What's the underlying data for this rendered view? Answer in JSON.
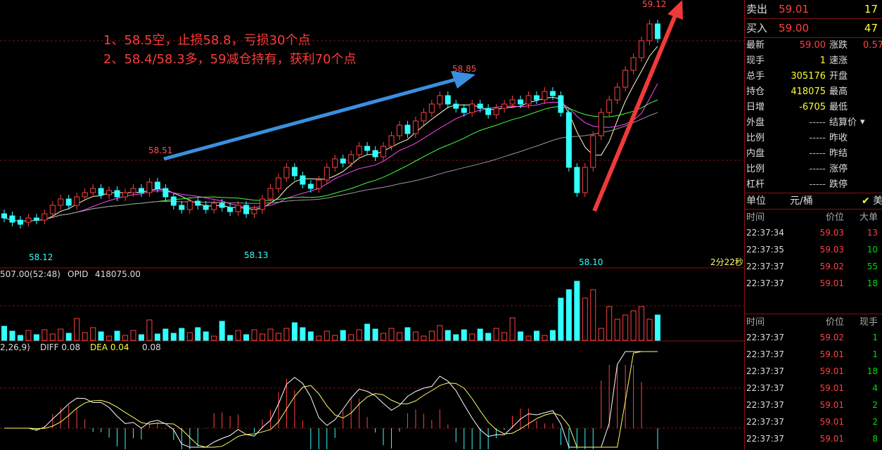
{
  "annotations": {
    "line1": "1、58.5空，止损58.8，亏损30个点",
    "line2": "2、58.4/58.3多，59减仓持有，获利70个点"
  },
  "price_labels": {
    "high_left": "58.51",
    "low_left": "58.12",
    "low_mid": "58.13",
    "high_mid": "58.85",
    "low_right": "58.10",
    "high_right": "59.12"
  },
  "timer": "2分22秒",
  "volume_header": {
    "vol": "507.00(52:48)",
    "opid_label": "OPID",
    "opid_value": "418075.00"
  },
  "macd_header": {
    "params": "2,26,9)",
    "diff": "DIFF 0.08",
    "dea": "DEA 0.04",
    "macd": "0.08"
  },
  "quote": {
    "sell_label": "卖出",
    "sell_price": "59.01",
    "sell_vol": "17",
    "buy_label": "买入",
    "buy_price": "59.00",
    "buy_vol": "47"
  },
  "stats": [
    {
      "l1": "最新",
      "v1": "59.00",
      "c1": "red",
      "l2": "涨跌",
      "v2": "0.57",
      "c2": "red"
    },
    {
      "l1": "现手",
      "v1": "1",
      "c1": "yellow",
      "l2": "速涨",
      "v2": "",
      "c2": "gray"
    },
    {
      "l1": "总手",
      "v1": "305176",
      "c1": "yellow",
      "l2": "开盘",
      "v2": "",
      "c2": "gray"
    },
    {
      "l1": "持仓",
      "v1": "418075",
      "c1": "yellow",
      "l2": "最高",
      "v2": "",
      "c2": "gray"
    },
    {
      "l1": "日增",
      "v1": "-6705",
      "c1": "yellow",
      "l2": "最低",
      "v2": "",
      "c2": "gray"
    },
    {
      "l1": "外盘",
      "v1": "-----",
      "c1": "gray",
      "l2": "结算价",
      "v2": "",
      "c2": "gray"
    },
    {
      "l1": "比例",
      "v1": "-----",
      "c1": "gray",
      "l2": "昨收",
      "v2": "",
      "c2": "gray"
    },
    {
      "l1": "内盘",
      "v1": "-----",
      "c1": "gray",
      "l2": "昨结",
      "v2": "",
      "c2": "gray"
    },
    {
      "l1": "比例",
      "v1": "-----",
      "c1": "gray",
      "l2": "涨停",
      "v2": "",
      "c2": "gray"
    },
    {
      "l1": "杠杆",
      "v1": "-----",
      "c1": "gray",
      "l2": "跌停",
      "v2": "",
      "c2": "gray"
    }
  ],
  "unit": {
    "label": "单位",
    "value": "元/桶",
    "flag": "美"
  },
  "big_orders": {
    "headers": [
      "时间",
      "价位",
      "大单"
    ],
    "rows": [
      {
        "time": "22:37:34",
        "price": "59.03",
        "vol": "13",
        "vc": "red"
      },
      {
        "time": "22:37:35",
        "price": "59.03",
        "vol": "10",
        "vc": "green"
      },
      {
        "time": "22:37:37",
        "price": "59.02",
        "vol": "55",
        "vc": "green"
      },
      {
        "time": "22:37:37",
        "price": "59.01",
        "vol": "18",
        "vc": "green"
      }
    ]
  },
  "ticks": {
    "headers": [
      "时间",
      "价位",
      "现手"
    ],
    "rows": [
      {
        "time": "22:37:37",
        "price": "59.02",
        "vol": "1",
        "vc": "green"
      },
      {
        "time": "22:37:37",
        "price": "59.01",
        "vol": "1",
        "vc": "green"
      },
      {
        "time": "22:37:37",
        "price": "59.01",
        "vol": "18",
        "vc": "green"
      },
      {
        "time": "22:37:37",
        "price": "59.01",
        "vol": "4",
        "vc": "green"
      },
      {
        "time": "22:37:37",
        "price": "59.01",
        "vol": "2",
        "vc": "green"
      },
      {
        "time": "22:37:37",
        "price": "59.01",
        "vol": "2",
        "vc": "green"
      },
      {
        "time": "22:37:37",
        "price": "59.01",
        "vol": "8",
        "vc": "green"
      }
    ]
  }
}
